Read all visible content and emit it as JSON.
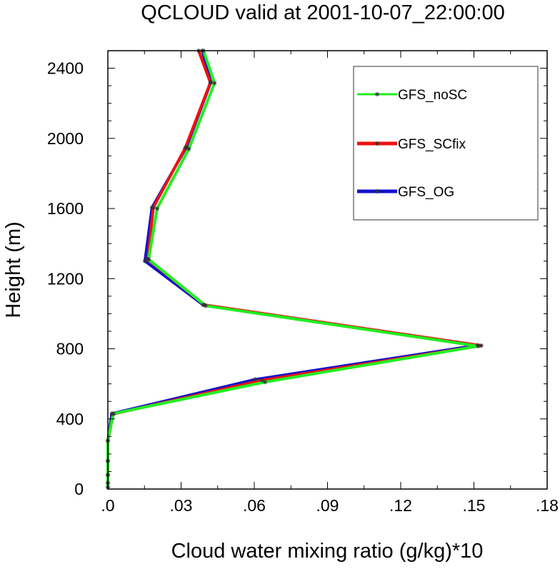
{
  "chart_data": {
    "type": "line",
    "title": "QCLOUD valid at 2001-10-07_22:00:00",
    "xlabel": "Cloud water mixing ratio (g/kg)*10",
    "ylabel": "Height (m)",
    "xlim": [
      0,
      0.18
    ],
    "ylim": [
      0,
      2500
    ],
    "xticks": [
      0,
      0.03,
      0.06,
      0.09,
      0.12,
      0.15,
      0.18
    ],
    "xtick_labels": [
      ".0",
      ".03",
      ".06",
      ".09",
      ".12",
      ".15",
      ".18"
    ],
    "yticks": [
      0,
      400,
      800,
      1200,
      1600,
      2000,
      2400
    ],
    "ytick_labels": [
      "0",
      "400",
      "800",
      "1200",
      "1600",
      "2000",
      "2400"
    ],
    "grid": false,
    "legend_position": "top-right",
    "series": [
      {
        "name": "GFS_noSC",
        "color": "#22ee22",
        "points": [
          [
            0.0,
            10
          ],
          [
            0.0,
            35
          ],
          [
            0.0,
            80
          ],
          [
            0.0,
            160
          ],
          [
            0.0,
            275
          ],
          [
            0.0022,
            430
          ],
          [
            0.0644,
            610
          ],
          [
            0.1518,
            815
          ],
          [
            0.0401,
            1045
          ],
          [
            0.0167,
            1310
          ],
          [
            0.0202,
            1600
          ],
          [
            0.0332,
            1940
          ],
          [
            0.0437,
            2315
          ],
          [
            0.0392,
            2500
          ]
        ]
      },
      {
        "name": "GFS_SCfix",
        "color": "#ee1111",
        "points": [
          [
            0.0,
            10
          ],
          [
            0.0,
            35
          ],
          [
            0.0,
            80
          ],
          [
            0.0,
            160
          ],
          [
            0.0,
            275
          ],
          [
            0.0022,
            428
          ],
          [
            0.0632,
            620
          ],
          [
            0.153,
            818
          ],
          [
            0.0396,
            1050
          ],
          [
            0.0164,
            1310
          ],
          [
            0.0186,
            1605
          ],
          [
            0.0317,
            1945
          ],
          [
            0.042,
            2318
          ],
          [
            0.0372,
            2500
          ]
        ]
      },
      {
        "name": "GFS_OG",
        "color": "#1111cc",
        "points": [
          [
            0.0,
            10
          ],
          [
            0.0,
            35
          ],
          [
            0.0,
            80
          ],
          [
            0.0,
            160
          ],
          [
            0.0,
            275
          ],
          [
            0.0016,
            430
          ],
          [
            0.0604,
            625
          ],
          [
            0.1515,
            820
          ],
          [
            0.0391,
            1050
          ],
          [
            0.0152,
            1300
          ],
          [
            0.0181,
            1605
          ],
          [
            0.0322,
            1950
          ],
          [
            0.0422,
            2320
          ],
          [
            0.0387,
            2500
          ]
        ]
      }
    ]
  }
}
